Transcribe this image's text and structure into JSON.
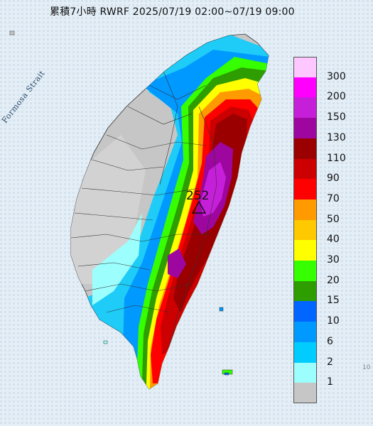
{
  "title": "累積7小時 RWRF 2025/07/19 02:00~07/19 09:00",
  "strait_label": "Formosa Strait",
  "peak": {
    "value": "252"
  },
  "corner_number": "10",
  "legend": [
    {
      "label": "300",
      "color": "#ffc7ff"
    },
    {
      "label": "200",
      "color": "#ff00ff"
    },
    {
      "label": "150",
      "color": "#c51fd9"
    },
    {
      "label": "130",
      "color": "#9d079f"
    },
    {
      "label": "110",
      "color": "#9a0000"
    },
    {
      "label": "90",
      "color": "#cc0000"
    },
    {
      "label": "70",
      "color": "#ff0000"
    },
    {
      "label": "50",
      "color": "#ff9a00"
    },
    {
      "label": "40",
      "color": "#ffc900"
    },
    {
      "label": "30",
      "color": "#ffff00"
    },
    {
      "label": "20",
      "color": "#35ff00"
    },
    {
      "label": "15",
      "color": "#2e9d00"
    },
    {
      "label": "10",
      "color": "#0066ff"
    },
    {
      "label": "6",
      "color": "#0099ff"
    },
    {
      "label": "2",
      "color": "#00ccff"
    },
    {
      "label": "1",
      "color": "#9dfffd"
    },
    {
      "label": "",
      "color": "#c6c6c6"
    }
  ],
  "colors": {
    "sea": "#dde9f3",
    "land_dry": "#c4c4c4",
    "land_none": "#d6d6d6"
  }
}
